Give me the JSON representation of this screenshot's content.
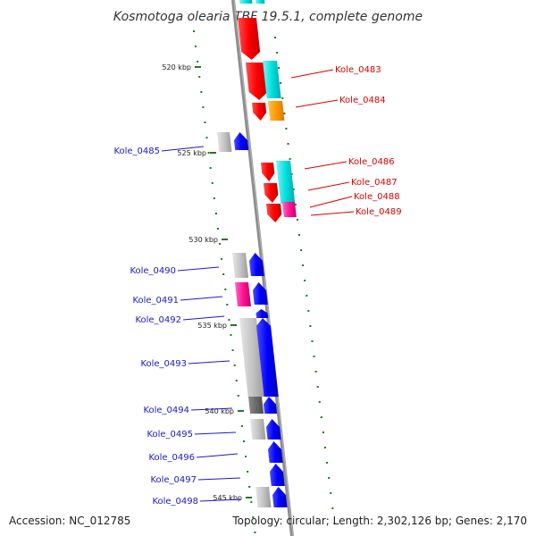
{
  "title": "Kosmotoga olearia TBF 19.5.1, complete genome",
  "accession": "Accession: NC_012785",
  "topology": "Topology: circular; Length: 2,302,126 bp; Genes: 2,170",
  "colors": {
    "forward_label": "#1a1acc",
    "reverse_label": "#dd0000",
    "tick": "#1f7a1f",
    "backbone": "#8c8c8c"
  },
  "scale_ticks": [
    {
      "label": "520 kbp"
    },
    {
      "label": "525 kbp"
    },
    {
      "label": "530 kbp"
    },
    {
      "label": "535 kbp"
    },
    {
      "label": "540 kbp"
    },
    {
      "label": "545 kbp"
    }
  ],
  "genes": [
    {
      "name": "Kole_0483",
      "strand": "reverse"
    },
    {
      "name": "Kole_0484",
      "strand": "reverse"
    },
    {
      "name": "Kole_0485",
      "strand": "forward"
    },
    {
      "name": "Kole_0486",
      "strand": "reverse"
    },
    {
      "name": "Kole_0487",
      "strand": "reverse"
    },
    {
      "name": "Kole_0488",
      "strand": "reverse"
    },
    {
      "name": "Kole_0489",
      "strand": "reverse"
    },
    {
      "name": "Kole_0490",
      "strand": "forward"
    },
    {
      "name": "Kole_0491",
      "strand": "forward"
    },
    {
      "name": "Kole_0492",
      "strand": "forward"
    },
    {
      "name": "Kole_0493",
      "strand": "forward"
    },
    {
      "name": "Kole_0494",
      "strand": "forward"
    },
    {
      "name": "Kole_0495",
      "strand": "forward"
    },
    {
      "name": "Kole_0496",
      "strand": "forward"
    },
    {
      "name": "Kole_0497",
      "strand": "forward"
    },
    {
      "name": "Kole_0498",
      "strand": "forward"
    }
  ]
}
